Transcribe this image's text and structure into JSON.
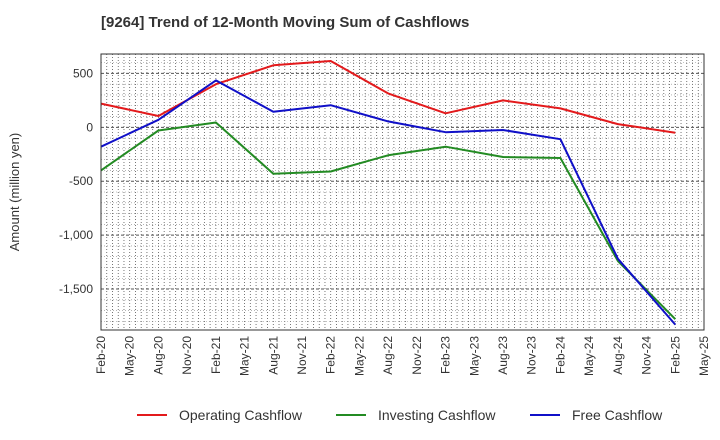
{
  "chart_data": {
    "type": "line",
    "title": "[9264]  Trend of 12-Month Moving Sum of Cashflows",
    "ylabel": "Amount (million yen)",
    "xlabel": "",
    "x": [
      "Feb-20",
      "May-20",
      "Aug-20",
      "Nov-20",
      "Feb-21",
      "May-21",
      "Aug-21",
      "Nov-21",
      "Feb-22",
      "May-22",
      "Aug-22",
      "Nov-22",
      "Feb-23",
      "May-23",
      "Aug-23",
      "Nov-23",
      "Feb-24",
      "May-24",
      "Aug-24",
      "Nov-24",
      "Feb-25",
      "May-25"
    ],
    "ylim": [
      -1880,
      680
    ],
    "yticks": [
      500,
      0,
      -500,
      -1000,
      -1500
    ],
    "ytick_labels": [
      "500",
      "0",
      "-500",
      "-1,000",
      "-1,500"
    ],
    "grid": true,
    "legend_position": "bottom",
    "series": [
      {
        "name": "Operating Cashflow",
        "color": "#e31a1c",
        "points": [
          [
            "Feb-20",
            220
          ],
          [
            "Aug-20",
            105
          ],
          [
            "Feb-21",
            400
          ],
          [
            "Aug-21",
            575
          ],
          [
            "Feb-22",
            615
          ],
          [
            "Aug-22",
            315
          ],
          [
            "Feb-23",
            130
          ],
          [
            "Aug-23",
            250
          ],
          [
            "Feb-24",
            175
          ],
          [
            "Aug-24",
            30
          ],
          [
            "Feb-25",
            -50
          ]
        ]
      },
      {
        "name": "Investing Cashflow",
        "color": "#238b23",
        "points": [
          [
            "Feb-20",
            -400
          ],
          [
            "Aug-20",
            -30
          ],
          [
            "Feb-21",
            45
          ],
          [
            "Aug-21",
            -430
          ],
          [
            "Feb-22",
            -410
          ],
          [
            "Aug-22",
            -260
          ],
          [
            "Feb-23",
            -180
          ],
          [
            "Aug-23",
            -275
          ],
          [
            "Feb-24",
            -285
          ],
          [
            "Aug-24",
            -1240
          ],
          [
            "Feb-25",
            -1780
          ]
        ]
      },
      {
        "name": "Free Cashflow",
        "color": "#1010c8",
        "points": [
          [
            "Feb-20",
            -180
          ],
          [
            "Aug-20",
            70
          ],
          [
            "Feb-21",
            435
          ],
          [
            "Aug-21",
            145
          ],
          [
            "Feb-22",
            205
          ],
          [
            "Aug-22",
            55
          ],
          [
            "Feb-23",
            -45
          ],
          [
            "Aug-23",
            -25
          ],
          [
            "Feb-24",
            -110
          ],
          [
            "Aug-24",
            -1220
          ],
          [
            "Feb-25",
            -1830
          ]
        ]
      }
    ]
  }
}
